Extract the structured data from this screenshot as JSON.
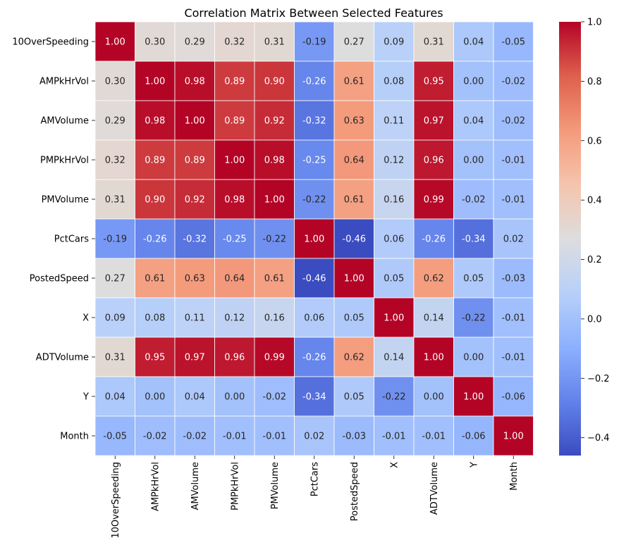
{
  "chart_data": {
    "type": "heatmap",
    "title": "Correlation Matrix Between Selected Features",
    "xlabel": "",
    "ylabel": "",
    "labels": [
      "10OverSpeeding",
      "AMPkHrVol",
      "AMVolume",
      "PMPkHrVol",
      "PMVolume",
      "PctCars",
      "PostedSpeed",
      "X",
      "ADTVolume",
      "Y",
      "Month"
    ],
    "matrix": [
      [
        1.0,
        0.3,
        0.29,
        0.32,
        0.31,
        -0.19,
        0.27,
        0.09,
        0.31,
        0.04,
        -0.05
      ],
      [
        0.3,
        1.0,
        0.98,
        0.89,
        0.9,
        -0.26,
        0.61,
        0.08,
        0.95,
        0.0,
        -0.02
      ],
      [
        0.29,
        0.98,
        1.0,
        0.89,
        0.92,
        -0.32,
        0.63,
        0.11,
        0.97,
        0.04,
        -0.02
      ],
      [
        0.32,
        0.89,
        0.89,
        1.0,
        0.98,
        -0.25,
        0.64,
        0.12,
        0.96,
        0.0,
        -0.01
      ],
      [
        0.31,
        0.9,
        0.92,
        0.98,
        1.0,
        -0.22,
        0.61,
        0.16,
        0.99,
        -0.02,
        -0.01
      ],
      [
        -0.19,
        -0.26,
        -0.32,
        -0.25,
        -0.22,
        1.0,
        -0.46,
        0.06,
        -0.26,
        -0.34,
        0.02
      ],
      [
        0.27,
        0.61,
        0.63,
        0.64,
        0.61,
        -0.46,
        1.0,
        0.05,
        0.62,
        0.05,
        -0.03
      ],
      [
        0.09,
        0.08,
        0.11,
        0.12,
        0.16,
        0.06,
        0.05,
        1.0,
        0.14,
        -0.22,
        -0.01
      ],
      [
        0.31,
        0.95,
        0.97,
        0.96,
        0.99,
        -0.26,
        0.62,
        0.14,
        1.0,
        0.0,
        -0.01
      ],
      [
        0.04,
        0.0,
        0.04,
        0.0,
        -0.02,
        -0.34,
        0.05,
        -0.22,
        0.0,
        1.0,
        -0.06
      ],
      [
        -0.05,
        -0.02,
        -0.02,
        -0.01,
        -0.01,
        0.02,
        -0.03,
        -0.01,
        -0.01,
        -0.06,
        1.0
      ]
    ],
    "colormap": "coolwarm",
    "vmin": -0.46,
    "vmax": 1.0,
    "colorbar_ticks": [
      -0.4,
      -0.2,
      0.0,
      0.2,
      0.4,
      0.6,
      0.8,
      1.0
    ],
    "colorbar_tick_labels": [
      "−0.4",
      "−0.2",
      "0.0",
      "0.2",
      "0.4",
      "0.6",
      "0.8",
      "1.0"
    ],
    "annotations_format": "0.00"
  }
}
